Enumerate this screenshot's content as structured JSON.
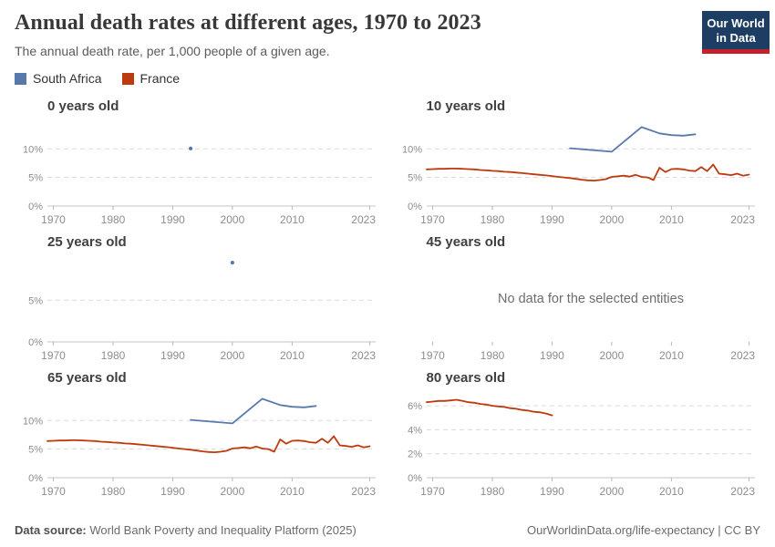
{
  "header": {
    "title": "Annual death rates at different ages, 1970 to 2023",
    "subtitle": "The annual death rate, per 1,000 people of a given age.",
    "logo": {
      "line1": "Our World",
      "line2": "in Data"
    }
  },
  "colors": {
    "south_africa": "#5879ae",
    "france": "#bc3a0e",
    "gridline": "#dadada",
    "axis_line": "#c6c6c6",
    "tick_mark": "#b8b8b8",
    "tick_text": "#8e8e8e",
    "no_data_text": "#6d6d6d",
    "logo_navy": "#1d3d63",
    "logo_red": "#c5202e"
  },
  "legend": [
    {
      "label": "South Africa",
      "color": "#5879ae"
    },
    {
      "label": "France",
      "color": "#bc3a0e"
    }
  ],
  "chart_data": [
    {
      "type": "scatter",
      "title": "0 years old",
      "xlim": [
        1969,
        2024
      ],
      "ylim": [
        0,
        15.3
      ],
      "xticks": [
        1970,
        1980,
        1990,
        2000,
        2010,
        2023
      ],
      "yticks": [
        {
          "v": 0,
          "label": "0%"
        },
        {
          "v": 5,
          "label": "5%"
        },
        {
          "v": 10,
          "label": "10%"
        }
      ],
      "baseline": true,
      "grid": "dashed",
      "legend_position": "none",
      "series": [
        {
          "name": "South Africa",
          "color": "#5879ae",
          "mode": "points",
          "points": [
            [
              1993,
              10.05
            ]
          ]
        }
      ]
    },
    {
      "type": "line",
      "title": "10 years old",
      "xlim": [
        1969,
        2024
      ],
      "ylim": [
        0,
        15.3
      ],
      "xticks": [
        1970,
        1980,
        1990,
        2000,
        2010,
        2023
      ],
      "yticks": [
        {
          "v": 0,
          "label": "0%"
        },
        {
          "v": 5,
          "label": "5%"
        },
        {
          "v": 10,
          "label": "10%"
        }
      ],
      "baseline": true,
      "grid": "dashed",
      "legend_position": "none",
      "series": [
        {
          "name": "South Africa",
          "color": "#5879ae",
          "mode": "line",
          "points": [
            [
              1993,
              10.1
            ],
            [
              2000,
              9.5
            ],
            [
              2005,
              13.8
            ],
            [
              2008,
              12.7
            ],
            [
              2010,
              12.4
            ],
            [
              2012,
              12.3
            ],
            [
              2014,
              12.55
            ]
          ]
        },
        {
          "name": "France",
          "color": "#bc3a0e",
          "mode": "line",
          "points": [
            [
              1969,
              6.4
            ],
            [
              1970,
              6.45
            ],
            [
              1971,
              6.5
            ],
            [
              1972,
              6.5
            ],
            [
              1973,
              6.55
            ],
            [
              1974,
              6.55
            ],
            [
              1975,
              6.5
            ],
            [
              1976,
              6.45
            ],
            [
              1977,
              6.4
            ],
            [
              1978,
              6.3
            ],
            [
              1979,
              6.25
            ],
            [
              1980,
              6.15
            ],
            [
              1981,
              6.1
            ],
            [
              1982,
              6.0
            ],
            [
              1983,
              5.95
            ],
            [
              1984,
              5.85
            ],
            [
              1985,
              5.75
            ],
            [
              1986,
              5.65
            ],
            [
              1987,
              5.55
            ],
            [
              1988,
              5.45
            ],
            [
              1989,
              5.35
            ],
            [
              1990,
              5.25
            ],
            [
              1991,
              5.1
            ],
            [
              1992,
              5.0
            ],
            [
              1993,
              4.9
            ],
            [
              1994,
              4.75
            ],
            [
              1995,
              4.6
            ],
            [
              1996,
              4.5
            ],
            [
              1997,
              4.45
            ],
            [
              1998,
              4.55
            ],
            [
              1999,
              4.7
            ],
            [
              2000,
              5.1
            ],
            [
              2001,
              5.2
            ],
            [
              2002,
              5.3
            ],
            [
              2003,
              5.15
            ],
            [
              2004,
              5.45
            ],
            [
              2005,
              5.1
            ],
            [
              2006,
              5.0
            ],
            [
              2007,
              4.55
            ],
            [
              2008,
              6.7
            ],
            [
              2009,
              5.95
            ],
            [
              2010,
              6.45
            ],
            [
              2011,
              6.5
            ],
            [
              2012,
              6.4
            ],
            [
              2013,
              6.2
            ],
            [
              2014,
              6.1
            ],
            [
              2015,
              6.8
            ],
            [
              2016,
              6.1
            ],
            [
              2017,
              7.25
            ],
            [
              2018,
              5.65
            ],
            [
              2019,
              5.55
            ],
            [
              2020,
              5.4
            ],
            [
              2021,
              5.65
            ],
            [
              2022,
              5.3
            ],
            [
              2023,
              5.5
            ]
          ]
        }
      ]
    },
    {
      "type": "scatter",
      "title": "25 years old",
      "xlim": [
        1969,
        2024
      ],
      "ylim": [
        0,
        10.5
      ],
      "xticks": [
        1970,
        1980,
        1990,
        2000,
        2010,
        2023
      ],
      "yticks": [
        {
          "v": 0,
          "label": "0%"
        },
        {
          "v": 5,
          "label": "5%"
        }
      ],
      "baseline": true,
      "grid": "dashed",
      "legend_position": "none",
      "series": [
        {
          "name": "South Africa",
          "color": "#5879ae",
          "mode": "points",
          "points": [
            [
              2000,
              9.5
            ]
          ]
        }
      ]
    },
    {
      "type": "empty",
      "title": "45 years old",
      "xlim": [
        1969,
        2024
      ],
      "ylim": [
        0,
        1
      ],
      "xticks": [
        1970,
        1980,
        1990,
        2000,
        2010,
        2023
      ],
      "yticks": [],
      "baseline": false,
      "grid": "none",
      "legend_position": "none",
      "no_data_message": "No data for the selected entities",
      "series": []
    },
    {
      "type": "line",
      "title": "65 years old",
      "xlim": [
        1969,
        2024
      ],
      "ylim": [
        0,
        15.3
      ],
      "xticks": [
        1970,
        1980,
        1990,
        2000,
        2010,
        2023
      ],
      "yticks": [
        {
          "v": 0,
          "label": "0%"
        },
        {
          "v": 5,
          "label": "5%"
        },
        {
          "v": 10,
          "label": "10%"
        }
      ],
      "baseline": true,
      "grid": "dashed",
      "legend_position": "none",
      "series": [
        {
          "name": "South Africa",
          "color": "#5879ae",
          "mode": "line",
          "points": [
            [
              1993,
              10.1
            ],
            [
              2000,
              9.5
            ],
            [
              2005,
              13.8
            ],
            [
              2008,
              12.7
            ],
            [
              2010,
              12.4
            ],
            [
              2012,
              12.3
            ],
            [
              2014,
              12.55
            ]
          ]
        },
        {
          "name": "France",
          "color": "#bc3a0e",
          "mode": "line",
          "points": [
            [
              1969,
              6.4
            ],
            [
              1970,
              6.45
            ],
            [
              1971,
              6.5
            ],
            [
              1972,
              6.5
            ],
            [
              1973,
              6.55
            ],
            [
              1974,
              6.55
            ],
            [
              1975,
              6.5
            ],
            [
              1976,
              6.45
            ],
            [
              1977,
              6.4
            ],
            [
              1978,
              6.3
            ],
            [
              1979,
              6.25
            ],
            [
              1980,
              6.15
            ],
            [
              1981,
              6.1
            ],
            [
              1982,
              6.0
            ],
            [
              1983,
              5.95
            ],
            [
              1984,
              5.85
            ],
            [
              1985,
              5.75
            ],
            [
              1986,
              5.65
            ],
            [
              1987,
              5.55
            ],
            [
              1988,
              5.45
            ],
            [
              1989,
              5.35
            ],
            [
              1990,
              5.25
            ],
            [
              1991,
              5.1
            ],
            [
              1992,
              5.0
            ],
            [
              1993,
              4.9
            ],
            [
              1994,
              4.75
            ],
            [
              1995,
              4.6
            ],
            [
              1996,
              4.5
            ],
            [
              1997,
              4.45
            ],
            [
              1998,
              4.55
            ],
            [
              1999,
              4.7
            ],
            [
              2000,
              5.1
            ],
            [
              2001,
              5.2
            ],
            [
              2002,
              5.3
            ],
            [
              2003,
              5.15
            ],
            [
              2004,
              5.45
            ],
            [
              2005,
              5.1
            ],
            [
              2006,
              5.0
            ],
            [
              2007,
              4.55
            ],
            [
              2008,
              6.7
            ],
            [
              2009,
              5.95
            ],
            [
              2010,
              6.45
            ],
            [
              2011,
              6.5
            ],
            [
              2012,
              6.4
            ],
            [
              2013,
              6.2
            ],
            [
              2014,
              6.1
            ],
            [
              2015,
              6.8
            ],
            [
              2016,
              6.1
            ],
            [
              2017,
              7.25
            ],
            [
              2018,
              5.65
            ],
            [
              2019,
              5.55
            ],
            [
              2020,
              5.4
            ],
            [
              2021,
              5.65
            ],
            [
              2022,
              5.3
            ],
            [
              2023,
              5.5
            ]
          ]
        }
      ]
    },
    {
      "type": "line",
      "title": "80 years old",
      "xlim": [
        1969,
        2024
      ],
      "ylim": [
        0,
        7.3
      ],
      "xticks": [
        1970,
        1980,
        1990,
        2000,
        2010,
        2023
      ],
      "yticks": [
        {
          "v": 0,
          "label": "0%"
        },
        {
          "v": 2,
          "label": "2%"
        },
        {
          "v": 4,
          "label": "4%"
        },
        {
          "v": 6,
          "label": "6%"
        }
      ],
      "baseline": true,
      "grid": "dashed",
      "legend_position": "none",
      "series": [
        {
          "name": "France",
          "color": "#bc3a0e",
          "mode": "line",
          "points": [
            [
              1969,
              6.3
            ],
            [
              1970,
              6.35
            ],
            [
              1971,
              6.4
            ],
            [
              1972,
              6.4
            ],
            [
              1973,
              6.45
            ],
            [
              1974,
              6.5
            ],
            [
              1975,
              6.4
            ],
            [
              1976,
              6.3
            ],
            [
              1977,
              6.25
            ],
            [
              1978,
              6.15
            ],
            [
              1979,
              6.1
            ],
            [
              1980,
              6.0
            ],
            [
              1981,
              5.95
            ],
            [
              1982,
              5.9
            ],
            [
              1983,
              5.8
            ],
            [
              1984,
              5.75
            ],
            [
              1985,
              5.65
            ],
            [
              1986,
              5.6
            ],
            [
              1987,
              5.5
            ],
            [
              1988,
              5.45
            ],
            [
              1989,
              5.35
            ],
            [
              1990,
              5.2
            ]
          ]
        }
      ]
    }
  ],
  "footer": {
    "datasource_label": "Data source:",
    "datasource_value": " World Bank Poverty and Inequality Platform (2025)",
    "credit": "OurWorldinData.org/life-expectancy | CC BY"
  }
}
